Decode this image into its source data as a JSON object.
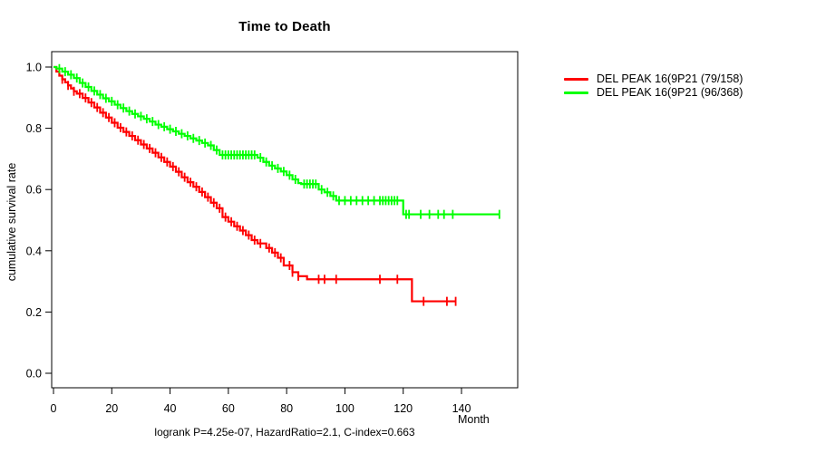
{
  "chart_data": {
    "type": "line",
    "subtype": "kaplan-meier-survival",
    "title": "Time to Death",
    "xlabel": "Month",
    "ylabel": "cumulative survival rate",
    "caption": "logrank P=4.25e-07, HazardRatio=2.1, C-index=0.663",
    "xlim": [
      0,
      160
    ],
    "ylim": [
      0.0,
      1.0
    ],
    "x_ticks": [
      0,
      20,
      40,
      60,
      80,
      100,
      120,
      140
    ],
    "x_tick_labels": [
      "0",
      "20",
      "40",
      "60",
      "80",
      "100",
      "120",
      "140"
    ],
    "y_ticks": [
      0.0,
      0.2,
      0.4,
      0.6,
      0.8,
      1.0
    ],
    "y_tick_labels": [
      "0.0",
      "0.2",
      "0.4",
      "0.6",
      "0.8",
      "1.0"
    ],
    "grid": false,
    "legend_position": "right-outside",
    "series": [
      {
        "name": "DEL PEAK 16(9P21 (79/158)",
        "color": "#ff0000",
        "end_time": 138,
        "steps": [
          [
            0,
            1.0
          ],
          [
            1,
            0.985
          ],
          [
            2,
            0.972
          ],
          [
            3,
            0.96
          ],
          [
            4,
            0.95
          ],
          [
            5,
            0.94
          ],
          [
            6,
            0.93
          ],
          [
            7,
            0.921
          ],
          [
            8,
            0.913
          ],
          [
            10,
            0.899
          ],
          [
            12,
            0.884
          ],
          [
            14,
            0.868
          ],
          [
            16,
            0.851
          ],
          [
            18,
            0.835
          ],
          [
            20,
            0.818
          ],
          [
            22,
            0.802
          ],
          [
            24,
            0.788
          ],
          [
            26,
            0.775
          ],
          [
            28,
            0.761
          ],
          [
            30,
            0.747
          ],
          [
            32,
            0.734
          ],
          [
            34,
            0.72
          ],
          [
            36,
            0.705
          ],
          [
            38,
            0.69
          ],
          [
            40,
            0.675
          ],
          [
            42,
            0.658
          ],
          [
            44,
            0.64
          ],
          [
            46,
            0.624
          ],
          [
            48,
            0.609
          ],
          [
            50,
            0.592
          ],
          [
            52,
            0.575
          ],
          [
            54,
            0.557
          ],
          [
            56,
            0.539
          ],
          [
            58,
            0.51
          ],
          [
            60,
            0.495
          ],
          [
            62,
            0.48
          ],
          [
            64,
            0.466
          ],
          [
            66,
            0.451
          ],
          [
            68,
            0.435
          ],
          [
            70,
            0.424
          ],
          [
            73,
            0.409
          ],
          [
            75,
            0.394
          ],
          [
            77,
            0.377
          ],
          [
            79,
            0.352
          ],
          [
            82,
            0.33
          ],
          [
            84,
            0.317
          ],
          [
            87,
            0.307
          ],
          [
            123,
            0.235
          ]
        ],
        "censor_times": [
          3,
          5,
          7,
          9,
          11,
          13,
          15,
          17,
          19,
          21,
          23,
          25,
          27,
          29,
          31,
          33,
          35,
          37,
          39,
          41,
          43,
          45,
          47,
          49,
          51,
          53,
          55,
          57,
          59,
          61,
          63,
          65,
          67,
          69,
          71,
          74,
          76,
          78,
          81,
          82,
          84,
          91,
          93,
          97,
          112,
          118,
          127,
          135,
          138
        ]
      },
      {
        "name": "DEL PEAK 16(9P21 (96/368)",
        "color": "#00ff00",
        "end_time": 153,
        "steps": [
          [
            0,
            1.0
          ],
          [
            1,
            0.995
          ],
          [
            3,
            0.985
          ],
          [
            5,
            0.975
          ],
          [
            7,
            0.964
          ],
          [
            9,
            0.948
          ],
          [
            11,
            0.935
          ],
          [
            13,
            0.922
          ],
          [
            15,
            0.91
          ],
          [
            17,
            0.898
          ],
          [
            19,
            0.888
          ],
          [
            21,
            0.877
          ],
          [
            23,
            0.866
          ],
          [
            25,
            0.856
          ],
          [
            27,
            0.847
          ],
          [
            29,
            0.839
          ],
          [
            31,
            0.831
          ],
          [
            33,
            0.822
          ],
          [
            35,
            0.812
          ],
          [
            37,
            0.805
          ],
          [
            39,
            0.797
          ],
          [
            41,
            0.79
          ],
          [
            43,
            0.782
          ],
          [
            45,
            0.775
          ],
          [
            47,
            0.767
          ],
          [
            49,
            0.76
          ],
          [
            51,
            0.752
          ],
          [
            53,
            0.744
          ],
          [
            55,
            0.729
          ],
          [
            57,
            0.713
          ],
          [
            70,
            0.704
          ],
          [
            72,
            0.69
          ],
          [
            74,
            0.678
          ],
          [
            76,
            0.669
          ],
          [
            78,
            0.659
          ],
          [
            80,
            0.647
          ],
          [
            82,
            0.633
          ],
          [
            84,
            0.621
          ],
          [
            85,
            0.618
          ],
          [
            91,
            0.6
          ],
          [
            93,
            0.591
          ],
          [
            95,
            0.579
          ],
          [
            97,
            0.564
          ],
          [
            120,
            0.519
          ]
        ],
        "censor_times": [
          2,
          4,
          6,
          8,
          10,
          12,
          14,
          16,
          18,
          20,
          22,
          24,
          26,
          28,
          30,
          32,
          34,
          36,
          38,
          40,
          42,
          44,
          46,
          48,
          50,
          52,
          54,
          56,
          58,
          59,
          60,
          61,
          62,
          63,
          64,
          65,
          66,
          67,
          68,
          69,
          71,
          73,
          75,
          77,
          79,
          81,
          83,
          86,
          87,
          88,
          89,
          90,
          92,
          94,
          96,
          98,
          100,
          102,
          104,
          106,
          108,
          110,
          112,
          113,
          114,
          115,
          116,
          117,
          118,
          121,
          122,
          126,
          129,
          132,
          134,
          137,
          153
        ]
      }
    ]
  }
}
